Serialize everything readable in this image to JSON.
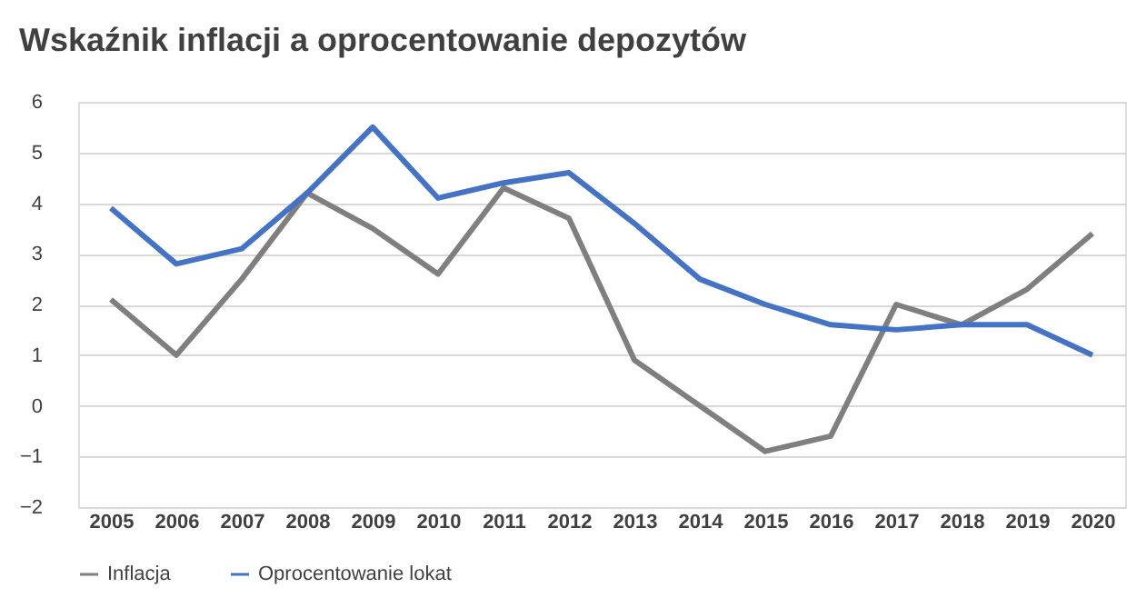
{
  "chart_data": {
    "type": "line",
    "title": "Wskaźnik inflacji a oprocentowanie depozytów",
    "categories": [
      "2005",
      "2006",
      "2007",
      "2008",
      "2009",
      "2010",
      "2011",
      "2012",
      "2013",
      "2014",
      "2015",
      "2016",
      "2017",
      "2018",
      "2019",
      "2020"
    ],
    "series": [
      {
        "name": "Inflacja",
        "color": "#7f7f7f",
        "values": [
          2.1,
          1.0,
          2.5,
          4.2,
          3.5,
          2.6,
          4.3,
          3.7,
          0.9,
          0.0,
          -0.9,
          -0.6,
          2.0,
          1.6,
          2.3,
          3.4
        ]
      },
      {
        "name": "Oprocentowanie lokat",
        "color": "#4472c4",
        "values": [
          3.9,
          2.8,
          3.1,
          4.2,
          5.5,
          4.1,
          4.4,
          4.6,
          3.6,
          2.5,
          2.0,
          1.6,
          1.5,
          1.6,
          1.6,
          1.0
        ]
      }
    ],
    "ylim": [
      -2,
      6
    ],
    "yticks": [
      -2,
      -1,
      0,
      1,
      2,
      3,
      4,
      5,
      6
    ],
    "grid": "y",
    "legend": "bottom",
    "marker": "none",
    "line_style": "solid"
  }
}
